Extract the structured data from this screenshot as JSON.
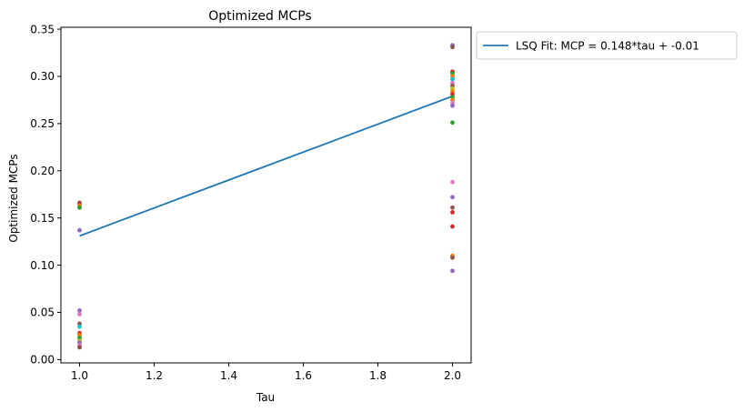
{
  "chart_data": {
    "type": "scatter",
    "title": "Optimized MCPs",
    "xlabel": "Tau",
    "ylabel": "Optimized MCPs",
    "xlim": [
      0.95,
      2.05
    ],
    "ylim": [
      -0.0035,
      0.352
    ],
    "xticks": [
      1.0,
      1.2,
      1.4,
      1.6,
      1.8,
      2.0
    ],
    "xtick_labels": [
      "1.0",
      "1.2",
      "1.4",
      "1.6",
      "1.8",
      "2.0"
    ],
    "yticks": [
      0.0,
      0.05,
      0.1,
      0.15,
      0.2,
      0.25,
      0.3,
      0.35
    ],
    "ytick_labels": [
      "0.00",
      "0.05",
      "0.10",
      "0.15",
      "0.20",
      "0.25",
      "0.30",
      "0.35"
    ],
    "grid": false,
    "legend": {
      "position": "outside-right",
      "entries": [
        "LSQ Fit: MCP = 0.148*tau + -0.01"
      ]
    },
    "fit_line": {
      "name": "LSQ Fit: MCP = 0.148*tau + -0.01",
      "color": "#1f77b4",
      "x": [
        1.0,
        2.0
      ],
      "y": [
        0.131,
        0.279
      ]
    },
    "points": [
      {
        "x": 1.0,
        "y": 0.166,
        "color": "#d62728"
      },
      {
        "x": 1.0,
        "y": 0.165,
        "color": "#8c564b"
      },
      {
        "x": 1.0,
        "y": 0.163,
        "color": "#ff7f0e"
      },
      {
        "x": 1.0,
        "y": 0.161,
        "color": "#2ca02c"
      },
      {
        "x": 1.0,
        "y": 0.137,
        "color": "#9467bd"
      },
      {
        "x": 1.0,
        "y": 0.052,
        "color": "#9467bd"
      },
      {
        "x": 1.0,
        "y": 0.048,
        "color": "#e377c2"
      },
      {
        "x": 1.0,
        "y": 0.038,
        "color": "#8c564b"
      },
      {
        "x": 1.0,
        "y": 0.035,
        "color": "#17becf"
      },
      {
        "x": 1.0,
        "y": 0.028,
        "color": "#d62728"
      },
      {
        "x": 1.0,
        "y": 0.026,
        "color": "#ff7f0e"
      },
      {
        "x": 1.0,
        "y": 0.023,
        "color": "#2ca02c"
      },
      {
        "x": 1.0,
        "y": 0.02,
        "color": "#bcbd22"
      },
      {
        "x": 1.0,
        "y": 0.018,
        "color": "#9467bd"
      },
      {
        "x": 1.0,
        "y": 0.015,
        "color": "#e377c2"
      },
      {
        "x": 1.0,
        "y": 0.013,
        "color": "#8c564b"
      },
      {
        "x": 2.0,
        "y": 0.333,
        "color": "#9467bd"
      },
      {
        "x": 2.0,
        "y": 0.331,
        "color": "#8c564b"
      },
      {
        "x": 2.0,
        "y": 0.305,
        "color": "#d62728"
      },
      {
        "x": 2.0,
        "y": 0.303,
        "color": "#2ca02c"
      },
      {
        "x": 2.0,
        "y": 0.3,
        "color": "#ff7f0e"
      },
      {
        "x": 2.0,
        "y": 0.297,
        "color": "#17becf"
      },
      {
        "x": 2.0,
        "y": 0.293,
        "color": "#e377c2"
      },
      {
        "x": 2.0,
        "y": 0.29,
        "color": "#8c564b"
      },
      {
        "x": 2.0,
        "y": 0.287,
        "color": "#bcbd22"
      },
      {
        "x": 2.0,
        "y": 0.284,
        "color": "#ff7f0e"
      },
      {
        "x": 2.0,
        "y": 0.281,
        "color": "#d62728"
      },
      {
        "x": 2.0,
        "y": 0.278,
        "color": "#2ca02c"
      },
      {
        "x": 2.0,
        "y": 0.275,
        "color": "#ff7f0e"
      },
      {
        "x": 2.0,
        "y": 0.272,
        "color": "#e377c2"
      },
      {
        "x": 2.0,
        "y": 0.269,
        "color": "#9467bd"
      },
      {
        "x": 2.0,
        "y": 0.251,
        "color": "#2ca02c"
      },
      {
        "x": 2.0,
        "y": 0.188,
        "color": "#e377c2"
      },
      {
        "x": 2.0,
        "y": 0.172,
        "color": "#9467bd"
      },
      {
        "x": 2.0,
        "y": 0.161,
        "color": "#8c564b"
      },
      {
        "x": 2.0,
        "y": 0.156,
        "color": "#d62728"
      },
      {
        "x": 2.0,
        "y": 0.141,
        "color": "#d62728"
      },
      {
        "x": 2.0,
        "y": 0.11,
        "color": "#ff7f0e"
      },
      {
        "x": 2.0,
        "y": 0.108,
        "color": "#8c564b"
      },
      {
        "x": 2.0,
        "y": 0.094,
        "color": "#9467bd"
      }
    ]
  }
}
